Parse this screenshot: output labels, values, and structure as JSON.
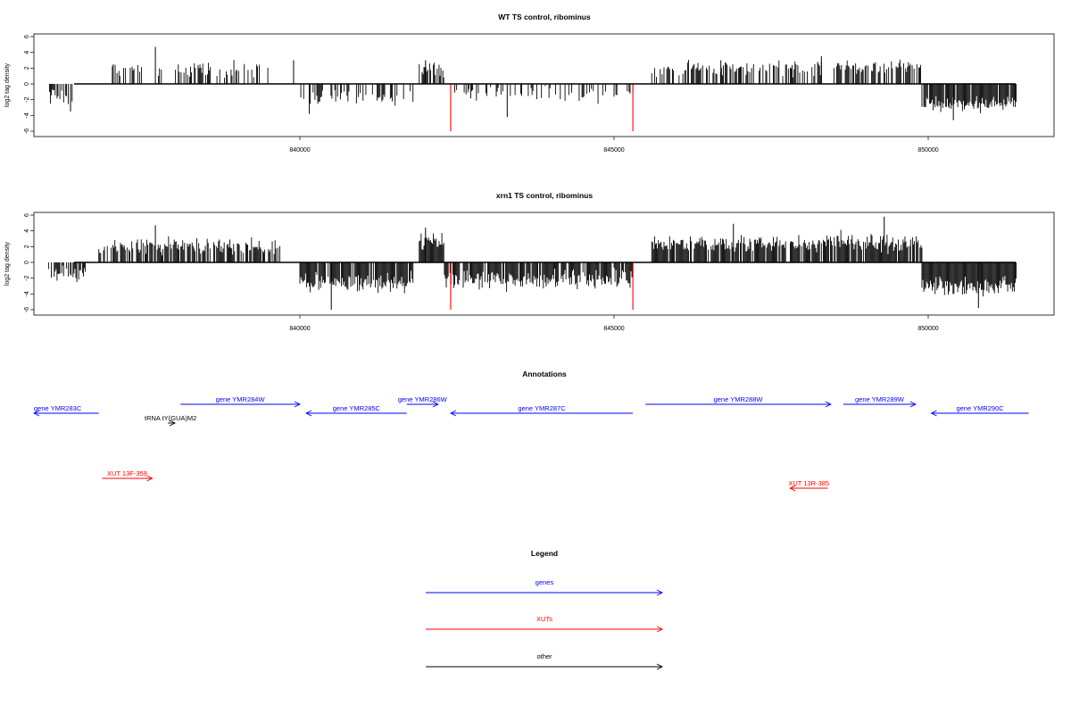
{
  "chart_data": [
    {
      "type": "bar",
      "title": "WT TS control, ribominus",
      "ylabel": "log2 tag density",
      "xlabel": "",
      "xlim": [
        835700,
        851500
      ],
      "ylim": [
        -6,
        6
      ],
      "x_ticks": [
        840000,
        845000,
        850000
      ],
      "y_ticks": [
        -6,
        -4,
        -2,
        0,
        2,
        4,
        6
      ],
      "x_tick_labels": [
        "840000",
        "845000",
        "850000"
      ],
      "y_tick_labels": [
        "-6",
        "-4",
        "-2",
        "0",
        "2",
        "4",
        "6"
      ],
      "grid": false,
      "highlights": [
        {
          "x": 842400,
          "y": -6,
          "color": "#ff0000"
        },
        {
          "x": 845300,
          "y": -6,
          "color": "#ff0000"
        }
      ],
      "profile": [
        {
          "start": 836000,
          "end": 836400,
          "mean": -1.5,
          "spread": 1.2,
          "density": 0.5
        },
        {
          "start": 837000,
          "end": 839500,
          "mean": 1.8,
          "spread": 1.0,
          "density": 0.35
        },
        {
          "start": 840000,
          "end": 841800,
          "mean": -1.8,
          "spread": 1.0,
          "density": 0.35
        },
        {
          "start": 841900,
          "end": 842300,
          "mean": 2.0,
          "spread": 1.2,
          "density": 0.7
        },
        {
          "start": 842300,
          "end": 845300,
          "mean": -1.2,
          "spread": 1.0,
          "density": 0.25
        },
        {
          "start": 845600,
          "end": 848300,
          "mean": 2.0,
          "spread": 1.0,
          "density": 0.45
        },
        {
          "start": 848500,
          "end": 849900,
          "mean": 2.2,
          "spread": 1.0,
          "density": 0.65
        },
        {
          "start": 849900,
          "end": 851400,
          "mean": -2.6,
          "spread": 1.0,
          "density": 0.9
        }
      ],
      "peaks": [
        {
          "x": 837700,
          "y": 4.7
        },
        {
          "x": 839900,
          "y": 3.0
        },
        {
          "x": 840150,
          "y": -3.8
        },
        {
          "x": 842000,
          "y": 3.0
        },
        {
          "x": 843300,
          "y": -4.2
        },
        {
          "x": 836350,
          "y": -3.5
        },
        {
          "x": 846700,
          "y": 3.0
        },
        {
          "x": 848300,
          "y": 3.5
        },
        {
          "x": 850400,
          "y": -4.6
        }
      ]
    },
    {
      "type": "bar",
      "title": "xrn1 TS control, ribominus",
      "ylabel": "log2 tag density",
      "xlabel": "",
      "xlim": [
        835700,
        851500
      ],
      "ylim": [
        -6,
        6
      ],
      "x_ticks": [
        840000,
        845000,
        850000
      ],
      "y_ticks": [
        -6,
        -4,
        -2,
        0,
        2,
        4,
        6
      ],
      "x_tick_labels": [
        "840000",
        "845000",
        "850000"
      ],
      "y_tick_labels": [
        "-6",
        "-4",
        "-2",
        "0",
        "2",
        "4",
        "6"
      ],
      "grid": false,
      "highlights": [
        {
          "x": 842400,
          "y": -6,
          "color": "#ff0000"
        },
        {
          "x": 845300,
          "y": -6,
          "color": "#ff0000"
        }
      ],
      "profile": [
        {
          "start": 836000,
          "end": 836600,
          "mean": -1.5,
          "spread": 1.2,
          "density": 0.6
        },
        {
          "start": 836800,
          "end": 839700,
          "mean": 2.0,
          "spread": 1.0,
          "density": 0.7
        },
        {
          "start": 840000,
          "end": 841800,
          "mean": -2.6,
          "spread": 1.2,
          "density": 0.85
        },
        {
          "start": 841900,
          "end": 842300,
          "mean": 2.6,
          "spread": 1.2,
          "density": 1.0
        },
        {
          "start": 842300,
          "end": 845300,
          "mean": -2.2,
          "spread": 1.2,
          "density": 0.85
        },
        {
          "start": 845600,
          "end": 848400,
          "mean": 2.4,
          "spread": 1.0,
          "density": 0.85
        },
        {
          "start": 848400,
          "end": 849900,
          "mean": 2.5,
          "spread": 1.2,
          "density": 0.9
        },
        {
          "start": 849900,
          "end": 851400,
          "mean": -3.0,
          "spread": 1.2,
          "density": 1.0
        }
      ],
      "peaks": [
        {
          "x": 837700,
          "y": 4.7
        },
        {
          "x": 840500,
          "y": -6.0
        },
        {
          "x": 842000,
          "y": 4.4
        },
        {
          "x": 849300,
          "y": 5.8
        },
        {
          "x": 850800,
          "y": -5.8
        },
        {
          "x": 846900,
          "y": 4.9
        }
      ]
    }
  ],
  "annotations": {
    "title": "Annotations",
    "features": [
      {
        "label": "gene YMR283C",
        "start": 835700,
        "end": 836800,
        "strand": "-",
        "color": "#0000ff",
        "row": 1
      },
      {
        "label": "gene YMR284W",
        "start": 838100,
        "end": 840000,
        "strand": "+",
        "color": "#0000ff",
        "row": 0
      },
      {
        "label": "gene YMR285C",
        "start": 840100,
        "end": 841700,
        "strand": "-",
        "color": "#0000ff",
        "row": 1
      },
      {
        "label": "gene YMR286W",
        "start": 841700,
        "end": 842200,
        "strand": "+",
        "color": "#0000ff",
        "row": 0
      },
      {
        "label": "gene YMR287C",
        "start": 842400,
        "end": 845300,
        "strand": "-",
        "color": "#0000ff",
        "row": 1
      },
      {
        "label": "gene YMR288W",
        "start": 845500,
        "end": 848450,
        "strand": "+",
        "color": "#0000ff",
        "row": 0
      },
      {
        "label": "gene YMR289W",
        "start": 848650,
        "end": 849800,
        "strand": "+",
        "color": "#0000ff",
        "row": 0
      },
      {
        "label": "gene YMR290C",
        "start": 850050,
        "end": 851600,
        "strand": "-",
        "color": "#0000ff",
        "row": 1
      },
      {
        "label": "tRNA tY(GUA)M2",
        "start": 837850,
        "end": 837950,
        "strand": "+",
        "color": "#000000",
        "row": 2
      },
      {
        "label": "XUT 13F-359",
        "start": 836850,
        "end": 837650,
        "strand": "+",
        "color": "#ff0000",
        "row": 3
      },
      {
        "label": "XUT 13R-385",
        "start": 847800,
        "end": 848400,
        "strand": "-",
        "color": "#ff0000",
        "row": 4
      }
    ]
  },
  "legend": {
    "title": "Legend",
    "items": [
      {
        "label": "genes",
        "color": "#0000ff"
      },
      {
        "label": "XUTs",
        "color": "#ff0000"
      },
      {
        "label": "other",
        "color": "#000000"
      }
    ]
  }
}
